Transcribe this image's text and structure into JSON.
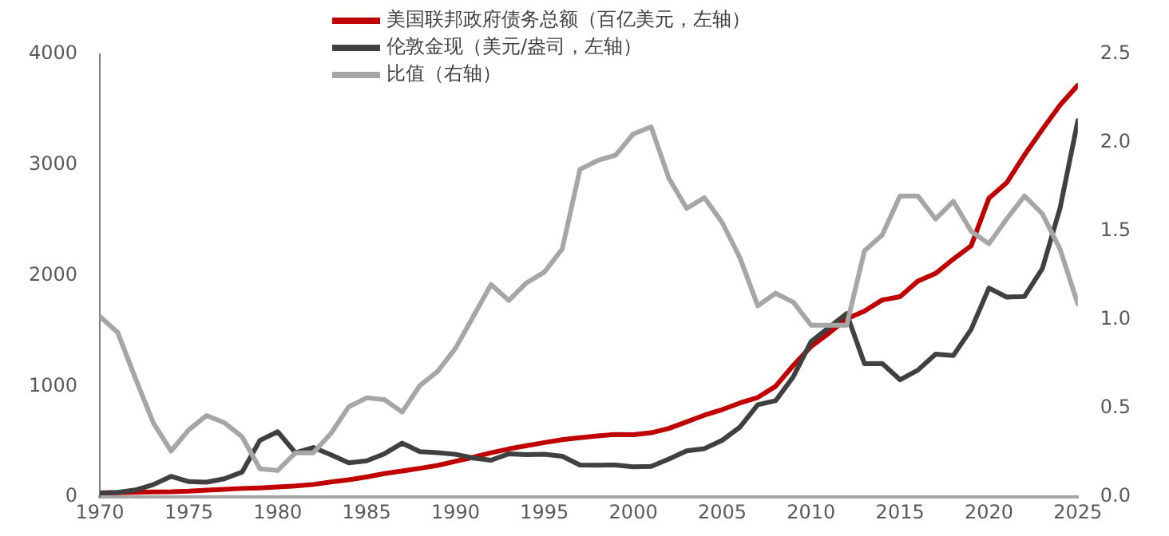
{
  "chart_data": {
    "type": "line",
    "x": [
      1970,
      1971,
      1972,
      1973,
      1974,
      1975,
      1976,
      1977,
      1978,
      1979,
      1980,
      1981,
      1982,
      1983,
      1984,
      1985,
      1986,
      1987,
      1988,
      1989,
      1990,
      1991,
      1992,
      1993,
      1994,
      1995,
      1996,
      1997,
      1998,
      1999,
      2000,
      2001,
      2002,
      2003,
      2004,
      2005,
      2006,
      2007,
      2008,
      2009,
      2010,
      2011,
      2012,
      2013,
      2014,
      2015,
      2016,
      2017,
      2018,
      2019,
      2020,
      2021,
      2022,
      2023,
      2024,
      2025
    ],
    "series": [
      {
        "name": "美国联邦政府债务总额（百亿美元，左轴）",
        "color": "#c00000",
        "values": [
          37,
          40,
          43,
          47,
          48,
          53,
          62,
          70,
          78,
          83,
          91,
          100,
          114,
          137,
          156,
          182,
          212,
          235,
          260,
          286,
          323,
          360,
          400,
          435,
          464,
          492,
          518,
          537,
          553,
          566,
          563,
          581,
          620,
          680,
          740,
          790,
          850,
          900,
          1000,
          1190,
          1360,
          1480,
          1610,
          1680,
          1780,
          1810,
          1950,
          2020,
          2150,
          2270,
          2700,
          2840,
          3090,
          3320,
          3540,
          3720
        ]
      },
      {
        "name": "伦敦金现（美元/盎司，左轴）",
        "color": "#404040",
        "values": [
          37,
          43,
          64,
          112,
          187,
          140,
          135,
          165,
          226,
          512,
          590,
          400,
          448,
          382,
          309,
          327,
          391,
          487,
          410,
          401,
          386,
          353,
          333,
          391,
          383,
          387,
          369,
          290,
          288,
          290,
          273,
          277,
          343,
          417,
          438,
          513,
          632,
          834,
          870,
          1088,
          1405,
          1531,
          1657,
          1205,
          1206,
          1060,
          1146,
          1291,
          1279,
          1515,
          1888,
          1806,
          1812,
          2062,
          2610,
          3400
        ]
      },
      {
        "name": "比值（右轴）",
        "color": "#a6a6a6",
        "axis": "y2",
        "values": [
          1.02,
          0.93,
          0.67,
          0.42,
          0.26,
          0.38,
          0.46,
          0.42,
          0.34,
          0.16,
          0.15,
          0.25,
          0.25,
          0.36,
          0.51,
          0.56,
          0.55,
          0.48,
          0.63,
          0.71,
          0.84,
          1.02,
          1.2,
          1.11,
          1.21,
          1.27,
          1.4,
          1.85,
          1.9,
          1.93,
          2.05,
          2.09,
          1.8,
          1.63,
          1.69,
          1.55,
          1.35,
          1.08,
          1.15,
          1.1,
          0.97,
          0.97,
          0.97,
          1.39,
          1.48,
          1.7,
          1.7,
          1.57,
          1.67,
          1.5,
          1.43,
          1.57,
          1.7,
          1.6,
          1.4,
          1.09
        ]
      }
    ],
    "xlim": [
      1970,
      2025
    ],
    "xticks": [
      1970,
      1975,
      1980,
      1985,
      1990,
      1995,
      2000,
      2005,
      2010,
      2015,
      2020,
      2025
    ],
    "ylim": [
      0,
      4000
    ],
    "yticks": [
      0,
      1000,
      2000,
      3000,
      4000
    ],
    "y2lim": [
      0,
      2.5
    ],
    "y2ticks": [
      {
        "value": 0,
        "label": "0.0"
      },
      {
        "value": 0.5,
        "label": "0.5"
      },
      {
        "value": 1,
        "label": "1.0"
      },
      {
        "value": 1.5,
        "label": "1.5"
      },
      {
        "value": 2,
        "label": "2.0"
      },
      {
        "value": 2.5,
        "label": "2.5"
      }
    ],
    "grid": false,
    "legend": "top",
    "marker": "none",
    "line_style": "solid"
  }
}
